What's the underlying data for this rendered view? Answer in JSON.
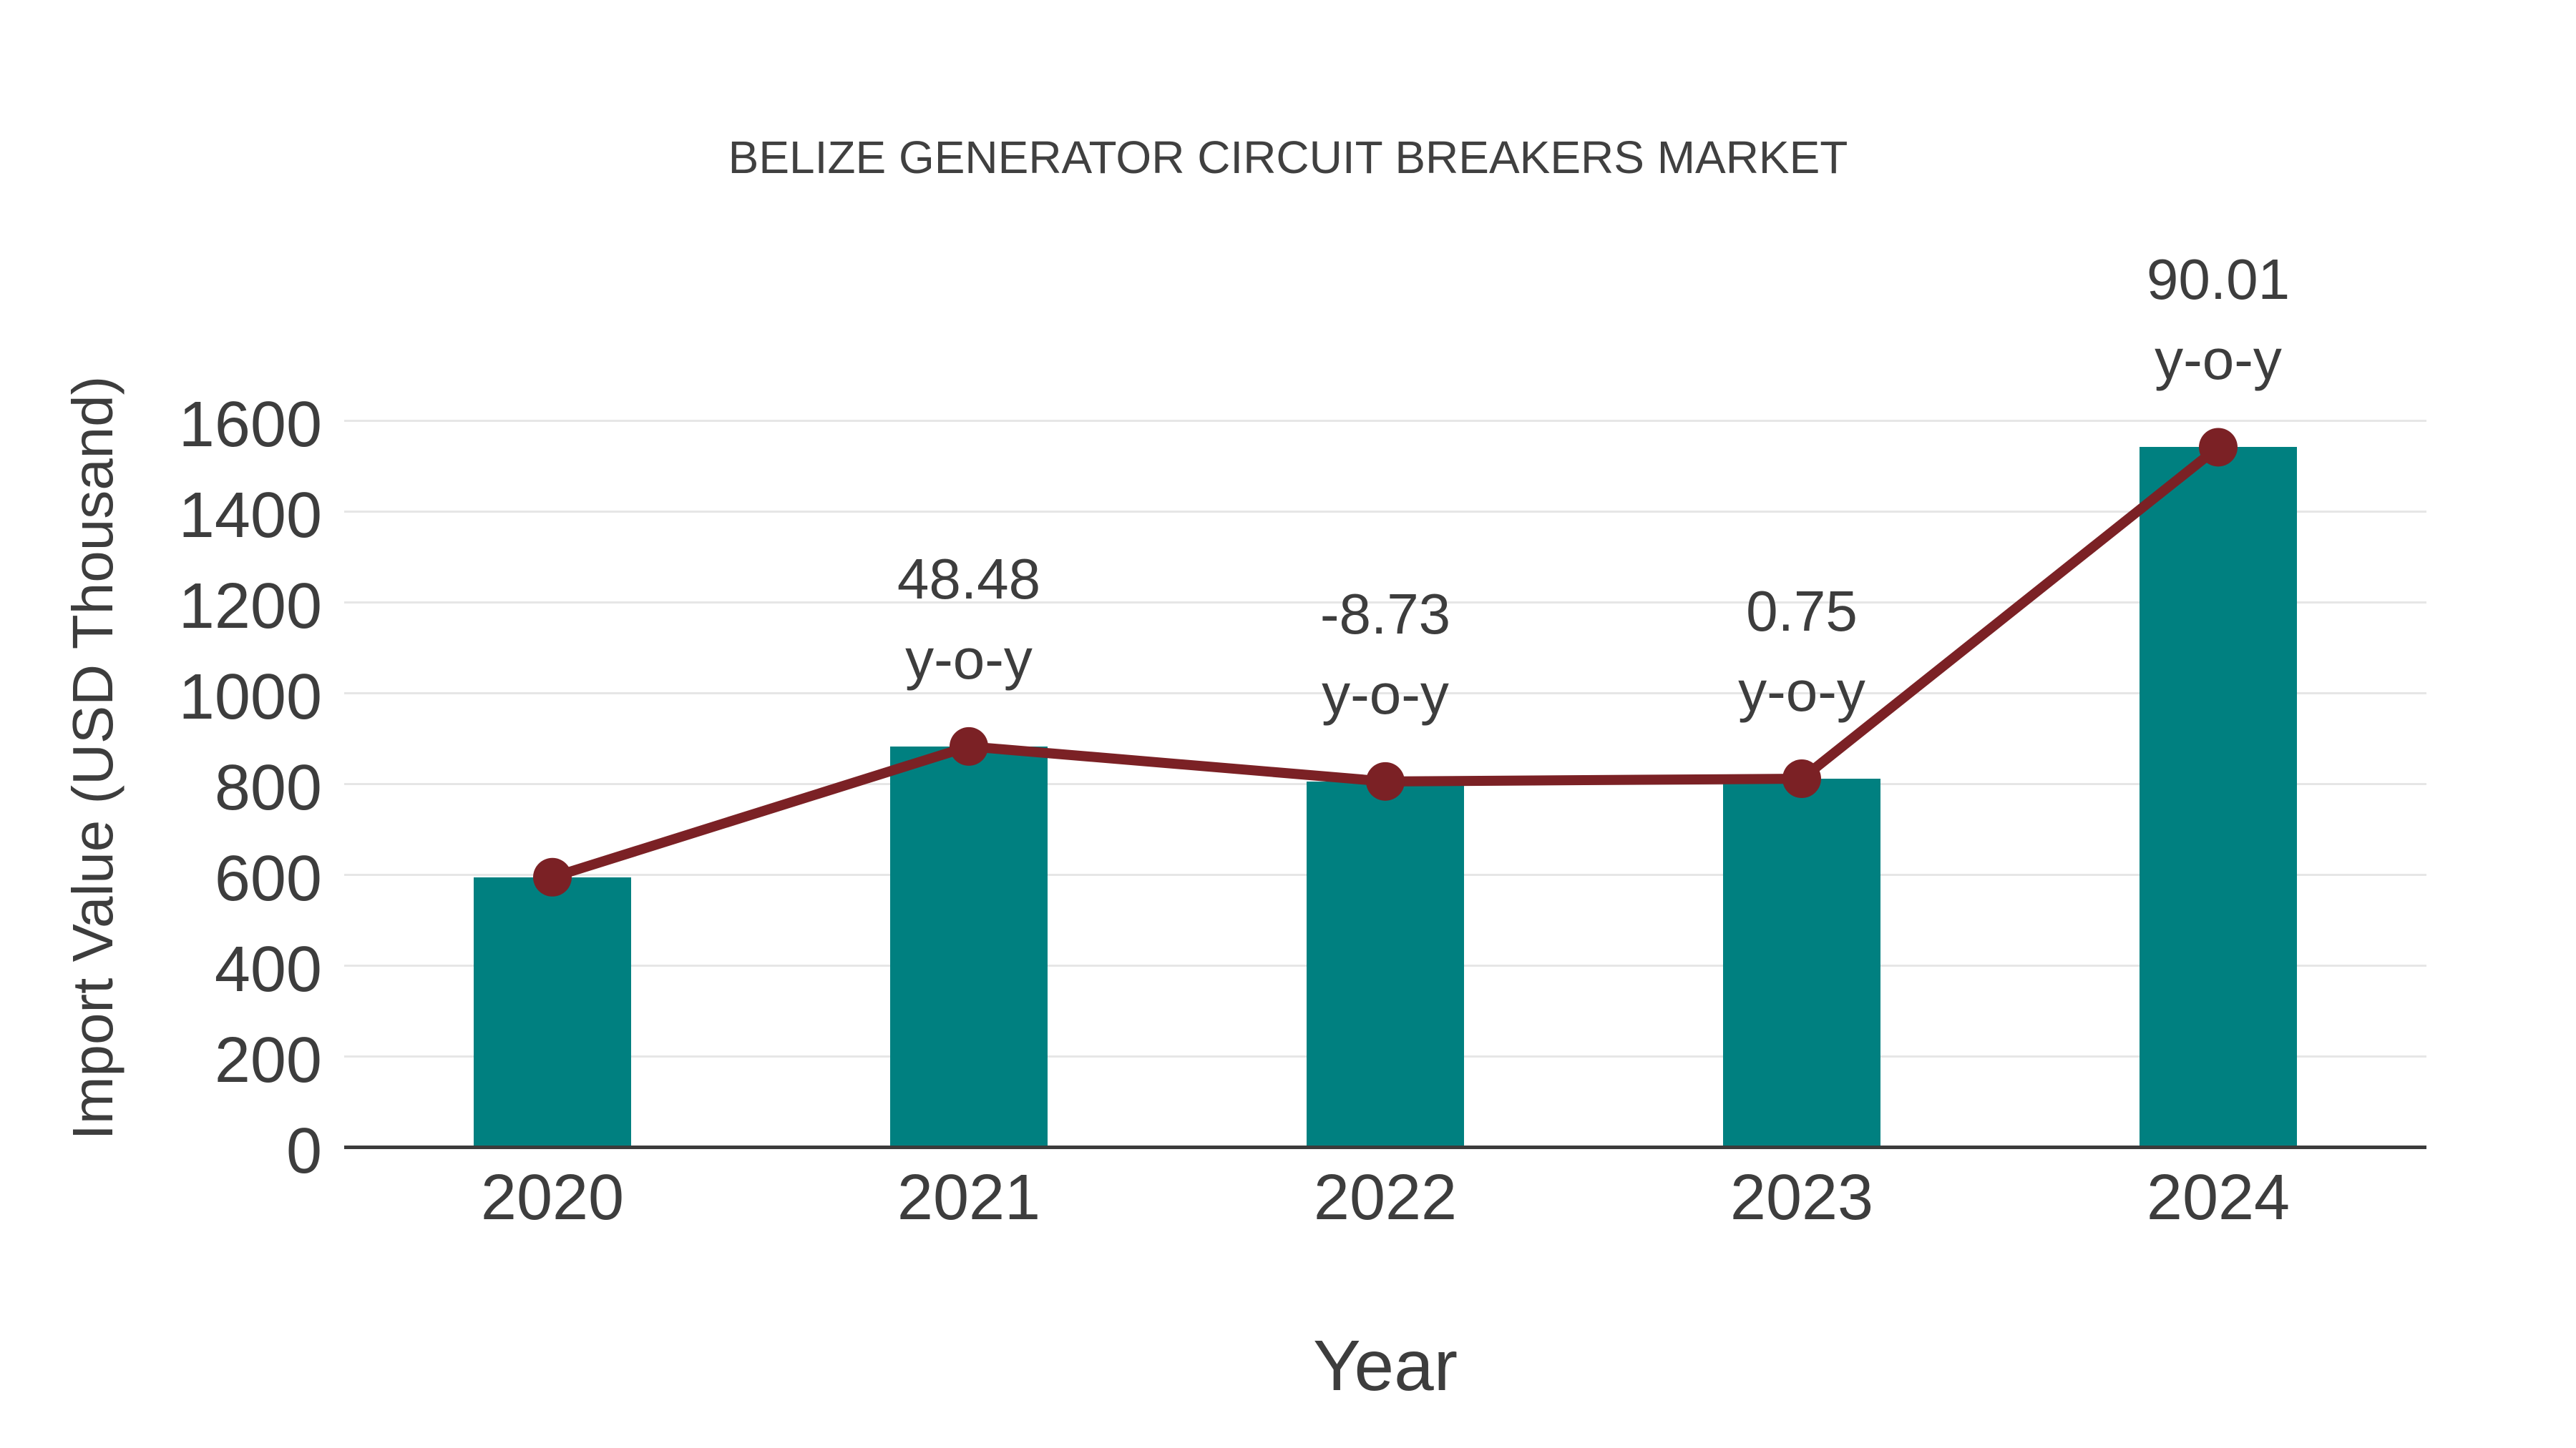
{
  "chart_data": {
    "type": "bar",
    "title": "BELIZE GENERATOR CIRCUIT BREAKERS MARKET",
    "xlabel": "Year",
    "ylabel": "Import Value (USD Thousand)",
    "categories": [
      "2020",
      "2021",
      "2022",
      "2023",
      "2024"
    ],
    "series": [
      {
        "name": "Import Value (USD Thousand)",
        "type": "bar",
        "color": "#008080",
        "values": [
          594,
          882,
          805,
          811,
          1541
        ]
      },
      {
        "name": "Import Value trend",
        "type": "line",
        "color": "#7b2125",
        "values": [
          594,
          882,
          805,
          811,
          1541
        ]
      }
    ],
    "annotations": [
      {
        "category": "2021",
        "value_line": "48.48",
        "label_line": "y-o-y"
      },
      {
        "category": "2022",
        "value_line": "-8.73",
        "label_line": "y-o-y"
      },
      {
        "category": "2023",
        "value_line": "0.75",
        "label_line": "y-o-y"
      },
      {
        "category": "2024",
        "value_line": "90.01",
        "label_line": "y-o-y"
      }
    ],
    "ylim": [
      0,
      1600
    ],
    "yticks": [
      0,
      200,
      400,
      600,
      800,
      1000,
      1200,
      1400,
      1600
    ],
    "grid": true,
    "legend": "none",
    "colors": {
      "bar": "#008080",
      "line": "#7b2125",
      "marker": "#7b2125",
      "gridline": "#e6e6e6",
      "axis_line": "#3b3b3b",
      "text": "#3d3d3d",
      "title": "#404040",
      "background": "#ffffff"
    }
  }
}
